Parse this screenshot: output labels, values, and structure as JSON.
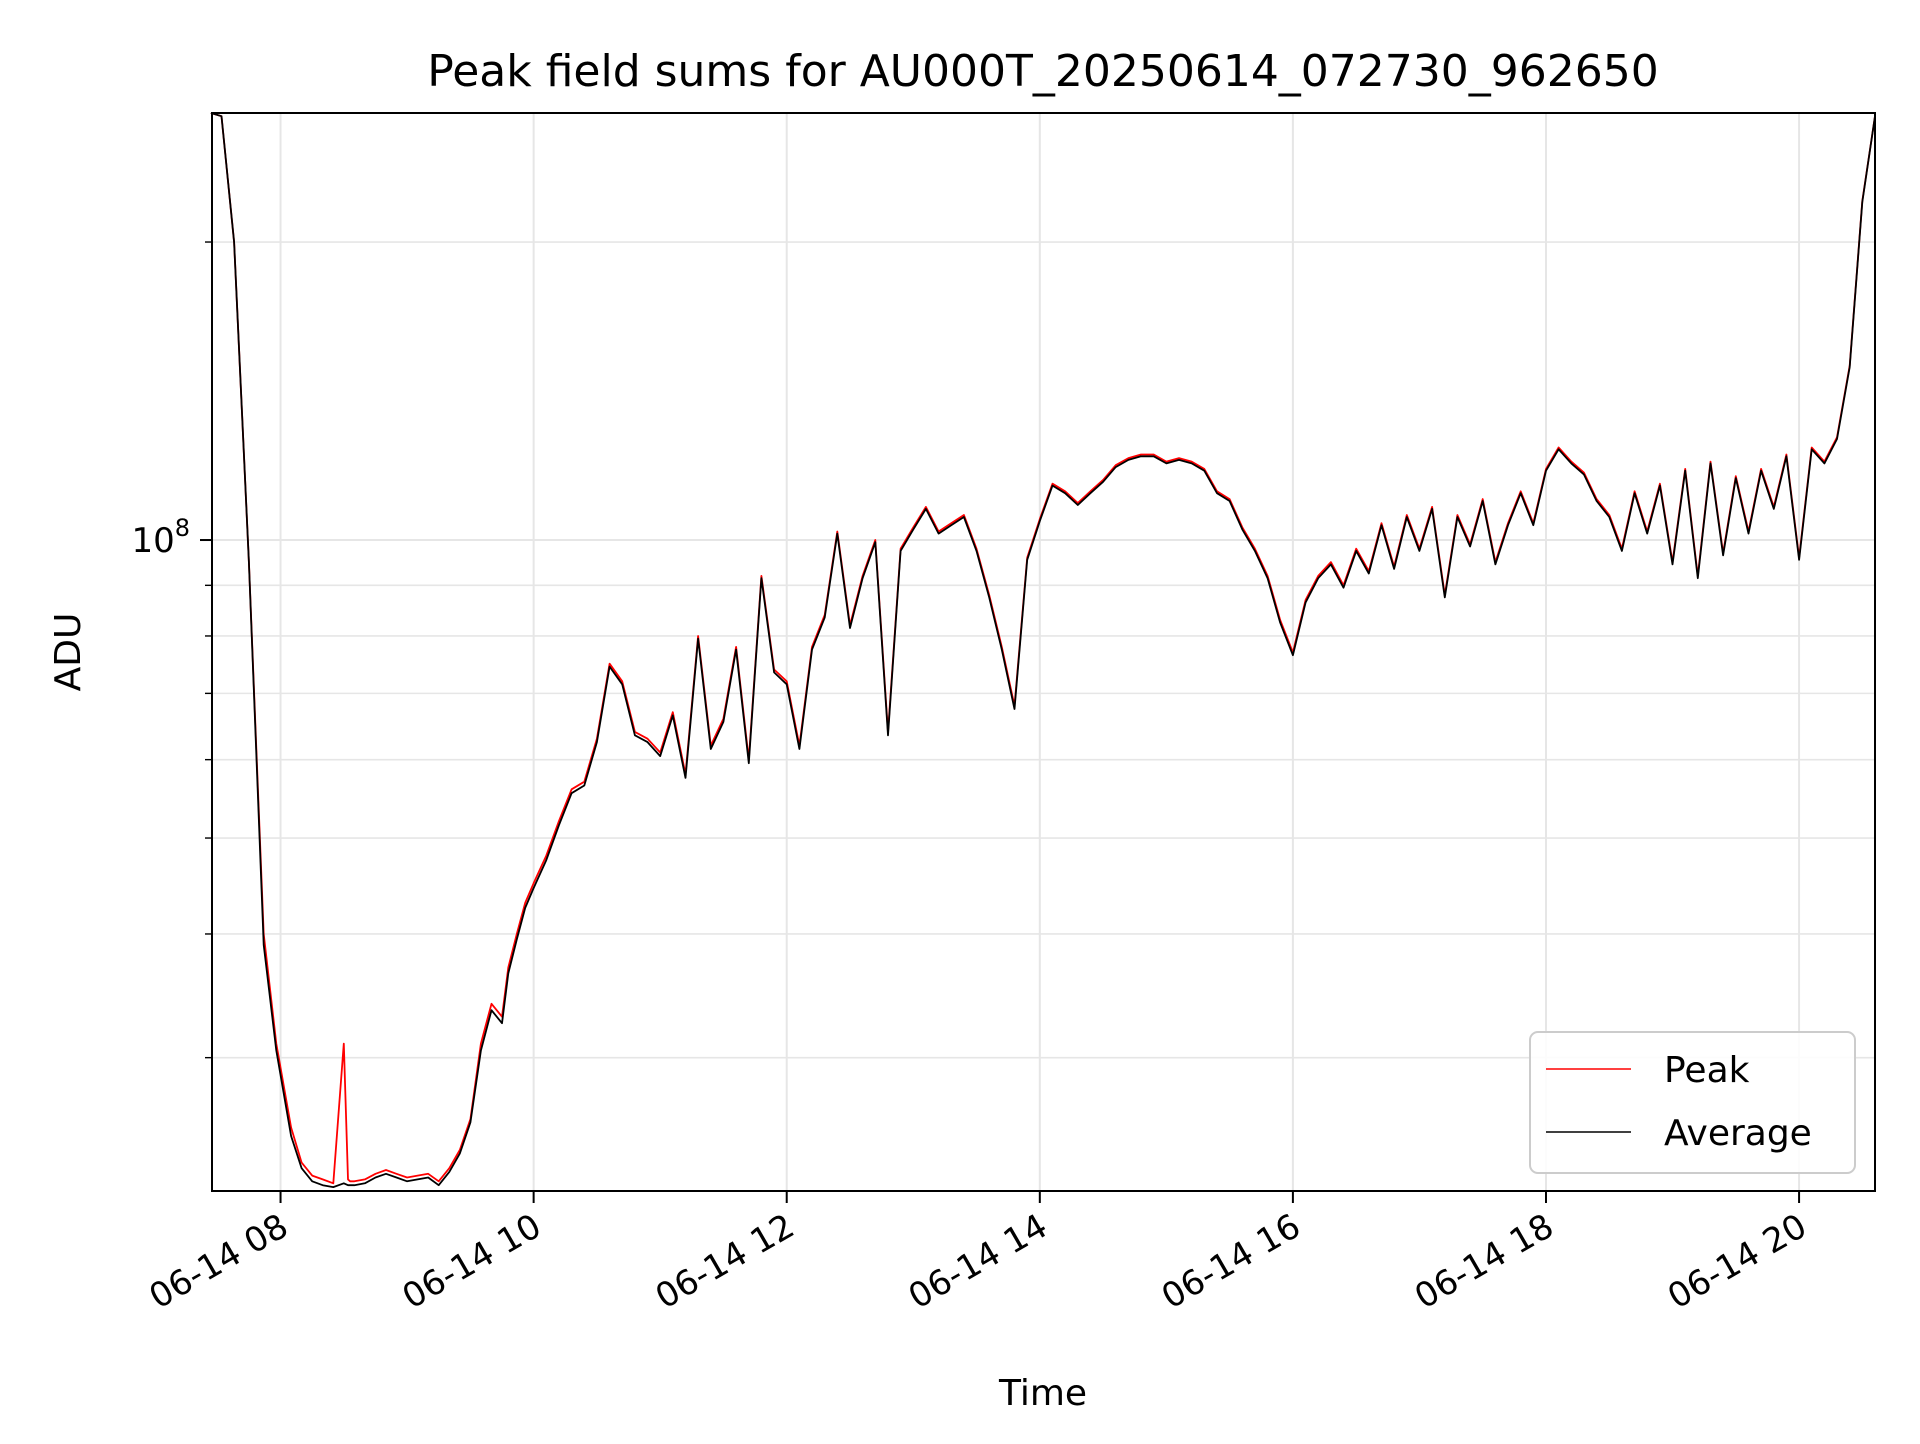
{
  "chart_data": {
    "type": "line",
    "title": "Peak field sums for AU000T_20250614_072730_962650",
    "xlabel": "Time",
    "ylabel": "ADU",
    "y_scale": "log",
    "ylim": [
      22000000,
      270000000
    ],
    "xlim": [
      "2025-06-14 07:27:30",
      "2025-06-14 20:36:00"
    ],
    "x_ticks": [
      "06-14 08",
      "06-14 10",
      "06-14 12",
      "06-14 14",
      "06-14 16",
      "06-14 18",
      "06-14 20"
    ],
    "x_tick_times": [
      "2025-06-14 08:00",
      "2025-06-14 10:00",
      "2025-06-14 12:00",
      "2025-06-14 14:00",
      "2025-06-14 16:00",
      "2025-06-14 18:00",
      "2025-06-14 20:00"
    ],
    "y_tick_label": {
      "base": "10",
      "exp": "8"
    },
    "y_tick_value": 100000000,
    "grid": true,
    "legend": {
      "placement": "lower-right",
      "entries": [
        "Peak",
        "Average"
      ]
    },
    "series": [
      {
        "name": "Peak",
        "color": "#ff0000",
        "x": [
          "07:27",
          "07:32",
          "07:38",
          "07:45",
          "07:52",
          "07:58",
          "08:05",
          "08:10",
          "08:15",
          "08:20",
          "08:25",
          "08:30",
          "08:32",
          "08:33",
          "08:35",
          "08:40",
          "08:45",
          "08:50",
          "08:55",
          "09:00",
          "09:05",
          "09:10",
          "09:15",
          "09:20",
          "09:25",
          "09:30",
          "09:35",
          "09:40",
          "09:45",
          "09:48",
          "09:52",
          "09:56",
          "10:00",
          "10:06",
          "10:12",
          "10:18",
          "10:24",
          "10:30",
          "10:36",
          "10:42",
          "10:48",
          "10:54",
          "11:00",
          "11:06",
          "11:12",
          "11:18",
          "11:24",
          "11:30",
          "11:36",
          "11:42",
          "11:48",
          "11:54",
          "12:00",
          "12:06",
          "12:12",
          "12:18",
          "12:24",
          "12:30",
          "12:36",
          "12:42",
          "12:48",
          "12:54",
          "13:00",
          "13:06",
          "13:12",
          "13:18",
          "13:24",
          "13:30",
          "13:36",
          "13:42",
          "13:48",
          "13:54",
          "14:00",
          "14:06",
          "14:12",
          "14:18",
          "14:24",
          "14:30",
          "14:36",
          "14:42",
          "14:48",
          "14:54",
          "15:00",
          "15:06",
          "15:12",
          "15:18",
          "15:24",
          "15:30",
          "15:36",
          "15:42",
          "15:48",
          "15:54",
          "16:00",
          "16:06",
          "16:12",
          "16:18",
          "16:24",
          "16:30",
          "16:36",
          "16:42",
          "16:48",
          "16:54",
          "17:00",
          "17:06",
          "17:12",
          "17:18",
          "17:24",
          "17:30",
          "17:36",
          "17:42",
          "17:48",
          "17:54",
          "18:00",
          "18:06",
          "18:12",
          "18:18",
          "18:24",
          "18:30",
          "18:36",
          "18:42",
          "18:48",
          "18:54",
          "19:00",
          "19:06",
          "19:12",
          "19:18",
          "19:24",
          "19:30",
          "19:36",
          "19:42",
          "19:48",
          "19:54",
          "20:00",
          "20:06",
          "20:12",
          "20:18",
          "20:24",
          "20:30",
          "20:36"
        ],
        "values": [
          270000000,
          268000000,
          200000000,
          95000000,
          40000000,
          31000000,
          25500000,
          23500000,
          22800000,
          22600000,
          22400000,
          31000000,
          22600000,
          22500000,
          22500000,
          22600000,
          22900000,
          23100000,
          22900000,
          22700000,
          22800000,
          22900000,
          22500000,
          23200000,
          24200000,
          26000000,
          31000000,
          34000000,
          33000000,
          37000000,
          40000000,
          43000000,
          45000000,
          48000000,
          52000000,
          56000000,
          57000000,
          63000000,
          75000000,
          72000000,
          64000000,
          63000000,
          61000000,
          67000000,
          58000000,
          80000000,
          62000000,
          66000000,
          78000000,
          60000000,
          92000000,
          74000000,
          72000000,
          62000000,
          78000000,
          84000000,
          102000000,
          82000000,
          92000000,
          100000000,
          64000000,
          98000000,
          103000000,
          108000000,
          102000000,
          104000000,
          106000000,
          98000000,
          88000000,
          78000000,
          68000000,
          96000000,
          105000000,
          114000000,
          112000000,
          109000000,
          112000000,
          115000000,
          119000000,
          121000000,
          122000000,
          122000000,
          120000000,
          121000000,
          120000000,
          118000000,
          112000000,
          110000000,
          103000000,
          98000000,
          92000000,
          83000000,
          77000000,
          87000000,
          92000000,
          95000000,
          90000000,
          98000000,
          93000000,
          104000000,
          94000000,
          106000000,
          98000000,
          108000000,
          88000000,
          106000000,
          99000000,
          110000000,
          95000000,
          104000000,
          112000000,
          104000000,
          118000000,
          124000000,
          120000000,
          117000000,
          110000000,
          106000000,
          98000000,
          112000000,
          102000000,
          114000000,
          95000000,
          118000000,
          92000000,
          120000000,
          97000000,
          116000000,
          102000000,
          118000000,
          108000000,
          122000000,
          96000000,
          124000000,
          120000000,
          127000000,
          150000000,
          220000000,
          268000000
        ]
      },
      {
        "name": "Average",
        "color": "#000000",
        "x": [
          "07:27",
          "07:32",
          "07:38",
          "07:45",
          "07:52",
          "07:58",
          "08:05",
          "08:10",
          "08:15",
          "08:20",
          "08:25",
          "08:30",
          "08:32",
          "08:33",
          "08:35",
          "08:40",
          "08:45",
          "08:50",
          "08:55",
          "09:00",
          "09:05",
          "09:10",
          "09:15",
          "09:20",
          "09:25",
          "09:30",
          "09:35",
          "09:40",
          "09:45",
          "09:48",
          "09:52",
          "09:56",
          "10:00",
          "10:06",
          "10:12",
          "10:18",
          "10:24",
          "10:30",
          "10:36",
          "10:42",
          "10:48",
          "10:54",
          "11:00",
          "11:06",
          "11:12",
          "11:18",
          "11:24",
          "11:30",
          "11:36",
          "11:42",
          "11:48",
          "11:54",
          "12:00",
          "12:06",
          "12:12",
          "12:18",
          "12:24",
          "12:30",
          "12:36",
          "12:42",
          "12:48",
          "12:54",
          "13:00",
          "13:06",
          "13:12",
          "13:18",
          "13:24",
          "13:30",
          "13:36",
          "13:42",
          "13:48",
          "13:54",
          "14:00",
          "14:06",
          "14:12",
          "14:18",
          "14:24",
          "14:30",
          "14:36",
          "14:42",
          "14:48",
          "14:54",
          "15:00",
          "15:06",
          "15:12",
          "15:18",
          "15:24",
          "15:30",
          "15:36",
          "15:42",
          "15:48",
          "15:54",
          "16:00",
          "16:06",
          "16:12",
          "16:18",
          "16:24",
          "16:30",
          "16:36",
          "16:42",
          "16:48",
          "16:54",
          "17:00",
          "17:06",
          "17:12",
          "17:18",
          "17:24",
          "17:30",
          "17:36",
          "17:42",
          "17:48",
          "17:54",
          "18:00",
          "18:06",
          "18:12",
          "18:18",
          "18:24",
          "18:30",
          "18:36",
          "18:42",
          "18:48",
          "18:54",
          "19:00",
          "19:06",
          "19:12",
          "19:18",
          "19:24",
          "19:30",
          "19:36",
          "19:42",
          "19:48",
          "19:54",
          "20:00",
          "20:06",
          "20:12",
          "20:18",
          "20:24",
          "20:30",
          "20:36"
        ],
        "values": [
          270000000,
          268000000,
          200000000,
          95000000,
          39000000,
          30500000,
          25000000,
          23200000,
          22500000,
          22300000,
          22200000,
          22400000,
          22300000,
          22300000,
          22300000,
          22400000,
          22700000,
          22900000,
          22700000,
          22500000,
          22600000,
          22700000,
          22300000,
          23000000,
          24000000,
          25800000,
          30500000,
          33500000,
          32500000,
          36500000,
          39500000,
          42500000,
          44500000,
          47500000,
          51500000,
          55500000,
          56500000,
          62500000,
          74500000,
          71500000,
          63500000,
          62500000,
          60500000,
          66500000,
          57500000,
          79500000,
          61500000,
          65500000,
          77500000,
          59500000,
          91500000,
          73500000,
          71500000,
          61500000,
          77500000,
          83500000,
          101500000,
          81500000,
          91500000,
          99500000,
          63500000,
          97500000,
          102500000,
          107500000,
          101500000,
          103500000,
          105500000,
          97500000,
          87500000,
          77500000,
          67500000,
          95500000,
          104500000,
          113500000,
          111500000,
          108500000,
          111500000,
          114500000,
          118500000,
          120500000,
          121500000,
          121500000,
          119500000,
          120500000,
          119500000,
          117500000,
          111500000,
          109500000,
          102500000,
          97500000,
          91500000,
          82500000,
          76500000,
          86500000,
          91500000,
          94500000,
          89500000,
          97500000,
          92500000,
          103500000,
          93500000,
          105500000,
          97500000,
          107500000,
          87500000,
          105500000,
          98500000,
          109500000,
          94500000,
          103500000,
          111500000,
          103500000,
          117500000,
          123500000,
          119500000,
          116500000,
          109500000,
          105500000,
          97500000,
          111500000,
          101500000,
          113500000,
          94500000,
          117500000,
          91500000,
          119500000,
          96500000,
          115500000,
          101500000,
          117500000,
          107500000,
          121500000,
          95500000,
          123500000,
          119500000,
          126500000,
          149500000,
          219500000,
          268000000
        ]
      }
    ]
  }
}
